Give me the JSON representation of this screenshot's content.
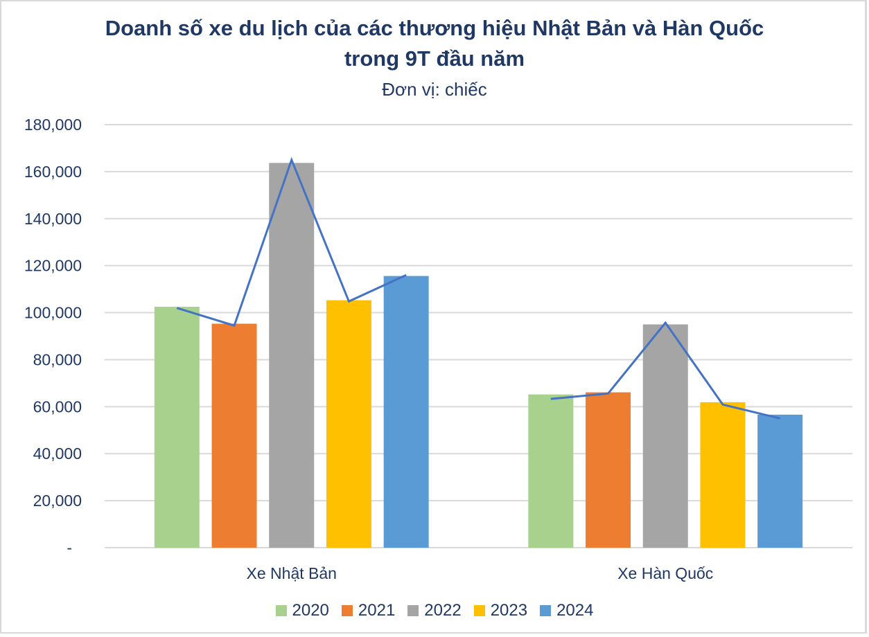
{
  "chart_data": {
    "type": "bar",
    "title": "Doanh số xe du lịch của các thương hiệu Nhật Bản và Hàn Quốc trong 9T đầu năm",
    "title_lines": [
      "Doanh số xe du lịch của các thương hiệu Nhật Bản và Hàn Quốc",
      "trong 9T đầu năm"
    ],
    "subtitle": "Đơn vị: chiếc",
    "xlabel": "",
    "ylabel": "",
    "categories": [
      "Xe Nhật Bản",
      "Xe Hàn Quốc"
    ],
    "series": [
      {
        "name": "2020",
        "color": "#a9d18e",
        "values": [
          102500,
          65200
        ]
      },
      {
        "name": "2021",
        "color": "#ed7d31",
        "values": [
          95300,
          66100
        ]
      },
      {
        "name": "2022",
        "color": "#a5a5a5",
        "values": [
          163700,
          95000
        ]
      },
      {
        "name": "2023",
        "color": "#ffc000",
        "values": [
          105300,
          61900
        ]
      },
      {
        "name": "2024",
        "color": "#5b9bd5",
        "values": [
          115600,
          56600
        ]
      }
    ],
    "overlay_line": {
      "color": "#4472c4",
      "note": "unlabeled line connecting approximate bar tops within each category",
      "points": [
        [
          102000,
          94500,
          165000,
          104800,
          116000
        ],
        [
          63300,
          65600,
          95700,
          60900,
          55000
        ]
      ]
    },
    "ylim": [
      0,
      180000
    ],
    "yticks": [
      0,
      20000,
      40000,
      60000,
      80000,
      100000,
      120000,
      140000,
      160000,
      180000
    ],
    "ytick_labels": [
      "-",
      "20,000",
      "40,000",
      "60,000",
      "80,000",
      "100,000",
      "120,000",
      "140,000",
      "160,000",
      "180,000"
    ],
    "grid": true,
    "legend_position": "bottom"
  },
  "legend": [
    {
      "label": "2020",
      "color": "#a9d18e"
    },
    {
      "label": "2021",
      "color": "#ed7d31"
    },
    {
      "label": "2022",
      "color": "#a5a5a5"
    },
    {
      "label": "2023",
      "color": "#ffc000"
    },
    {
      "label": "2024",
      "color": "#5b9bd5"
    }
  ]
}
